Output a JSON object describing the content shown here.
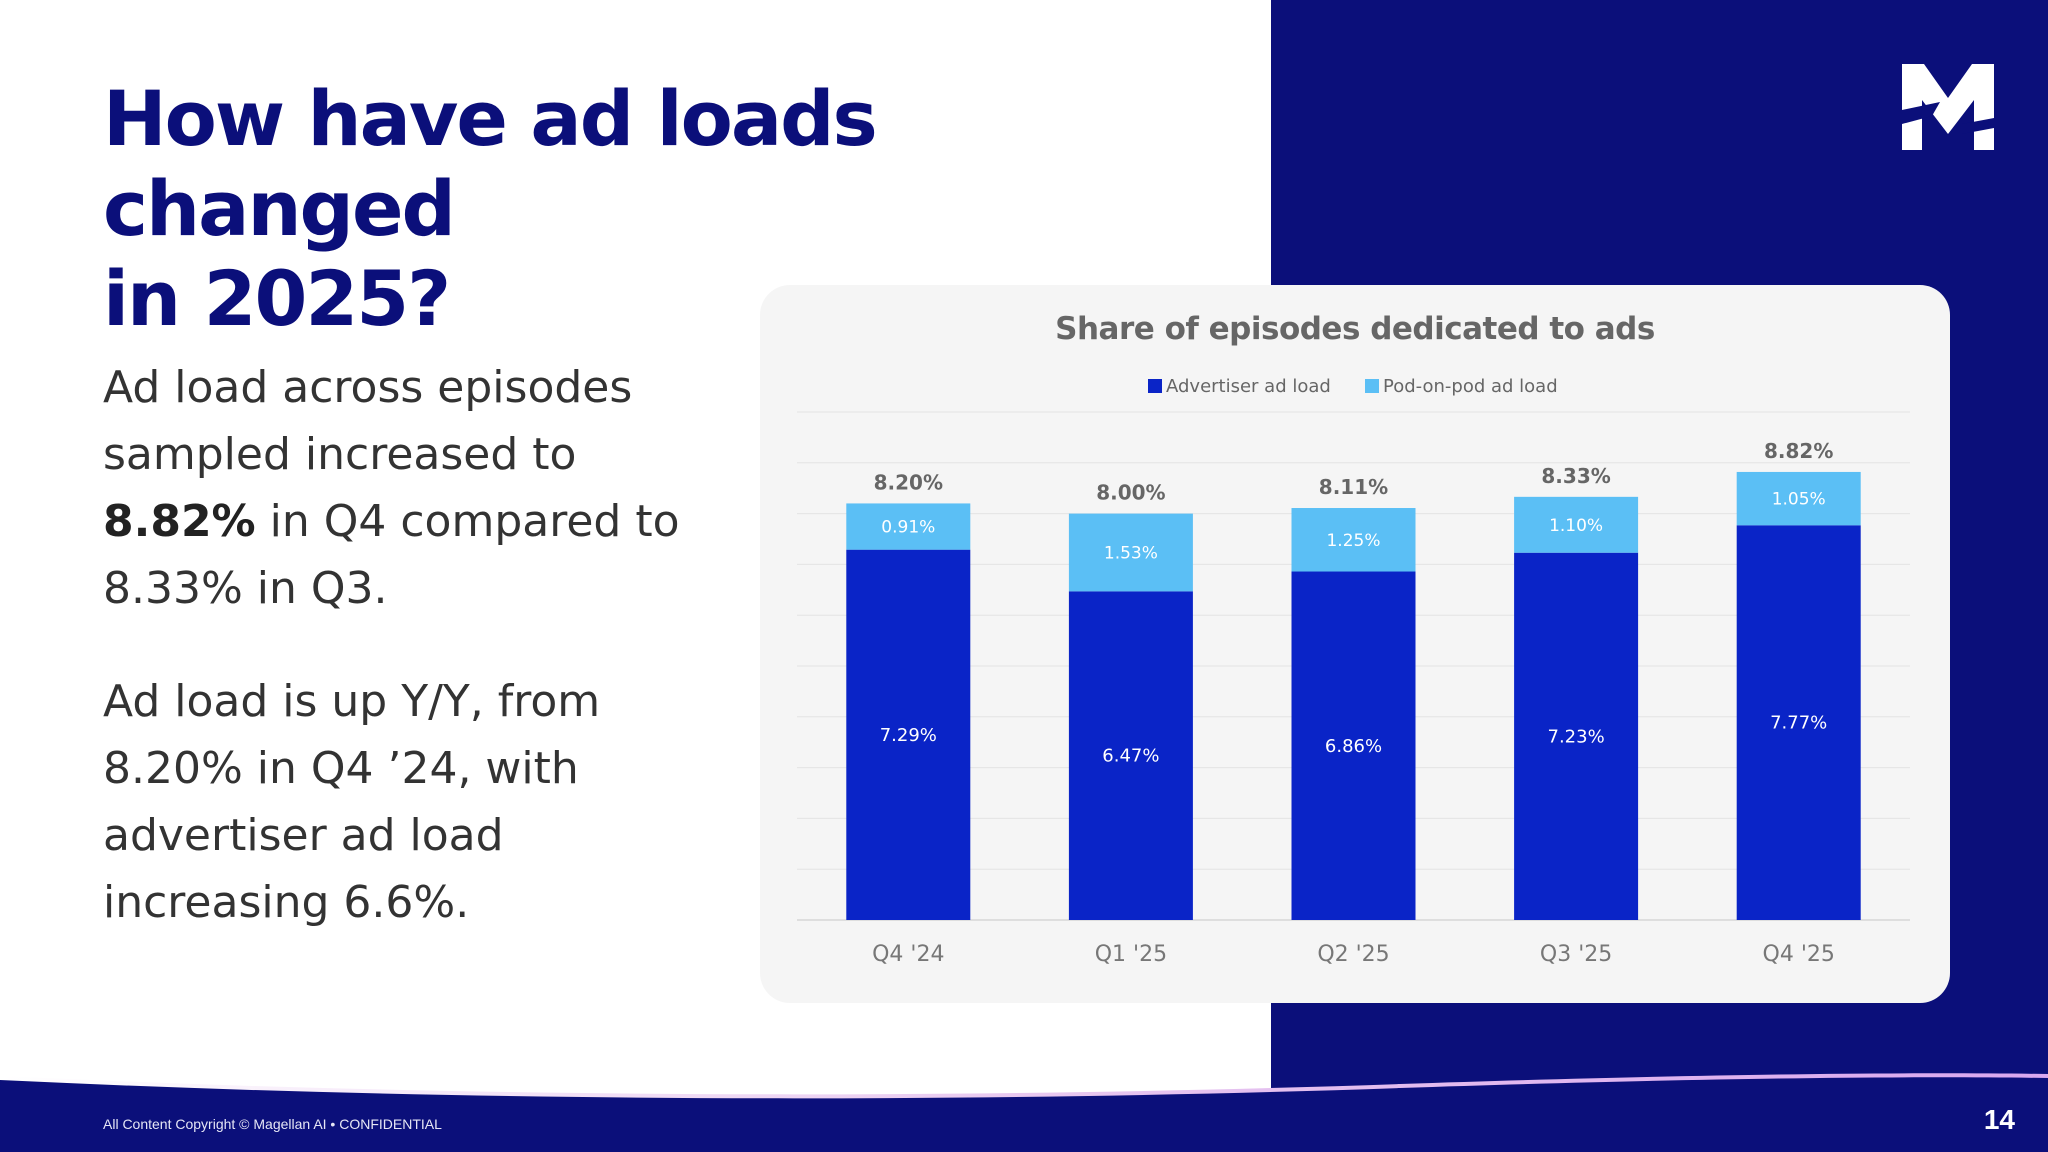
{
  "slide": {
    "title_lines": [
      "How have ad loads changed",
      "in 2025?"
    ],
    "para1": {
      "pre": "Ad load across episodes sampled increased to ",
      "bold": "8.82%",
      "post": " in Q4 compared to 8.33% in Q3."
    },
    "para2": "Ad load is up Y/Y, from 8.20% in Q4 ’24, with advertiser ad load increasing 6.6%.",
    "footer": "All Content Copyright © Magellan AI • CONFIDENTIAL",
    "page_number": "14"
  },
  "colors": {
    "navy": "#0b0f7a",
    "advertiser": "#0a24c7",
    "pod": "#5bbff5"
  },
  "chart_data": {
    "type": "bar",
    "stacked": true,
    "title": "Share of episodes dedicated to ads",
    "legend_position": "top-center",
    "categories": [
      "Q4 '24",
      "Q1 '25",
      "Q2 '25",
      "Q3 '25",
      "Q4 '25"
    ],
    "series": [
      {
        "name": "Advertiser ad load",
        "values": [
          7.29,
          6.47,
          6.86,
          7.23,
          7.77
        ],
        "labels": [
          "7.29%",
          "6.47%",
          "6.86%",
          "7.23%",
          "7.77%"
        ]
      },
      {
        "name": "Pod-on-pod ad load",
        "values": [
          0.91,
          1.53,
          1.25,
          1.1,
          1.05
        ],
        "labels": [
          "0.91%",
          "1.53%",
          "1.25%",
          "1.10%",
          "1.05%"
        ]
      }
    ],
    "totals": [
      8.2,
      8.0,
      8.11,
      8.33,
      8.82
    ],
    "total_labels": [
      "8.20%",
      "8.00%",
      "8.11%",
      "8.33%",
      "8.82%"
    ],
    "ylim": [
      0,
      10
    ],
    "grid": true,
    "xlabel": "",
    "ylabel": ""
  }
}
